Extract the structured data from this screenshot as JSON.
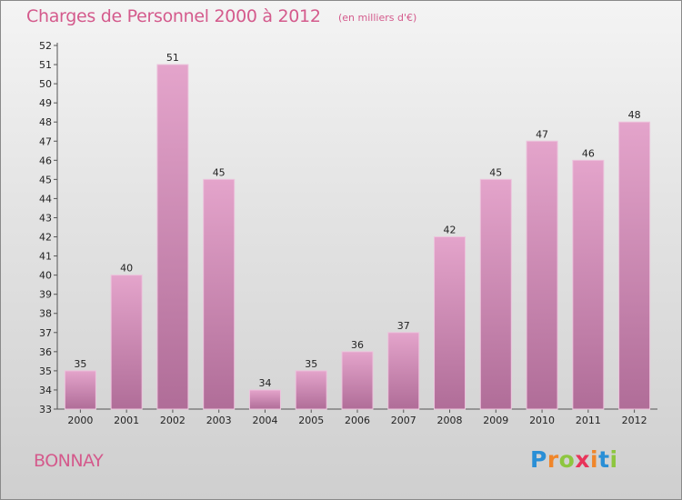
{
  "title": "Charges de Personnel 2000 à 2012",
  "unit_note": "(en milliers d'€)",
  "location": "BONNAY",
  "brand": {
    "letters": [
      {
        "char": "P",
        "color": "#2a8fd6"
      },
      {
        "char": "r",
        "color": "#f0862a"
      },
      {
        "char": "o",
        "color": "#8dc63f"
      },
      {
        "char": "x",
        "color": "#e8345a"
      },
      {
        "char": "i",
        "color": "#f0862a"
      },
      {
        "char": "t",
        "color": "#2a8fd6"
      },
      {
        "char": "i",
        "color": "#8dc63f"
      }
    ]
  },
  "colors": {
    "title": "#d45a8c",
    "bar_top": "#e4a4cb",
    "bar_bottom": "#b06d98"
  },
  "chart_data": {
    "type": "bar",
    "title": "Charges de Personnel 2000 à 2012",
    "subtitle": "(en milliers d'€)",
    "categories": [
      "2000",
      "2001",
      "2002",
      "2003",
      "2004",
      "2005",
      "2006",
      "2007",
      "2008",
      "2009",
      "2010",
      "2011",
      "2012"
    ],
    "values": [
      35,
      40,
      51,
      45,
      34,
      35,
      36,
      37,
      42,
      45,
      47,
      46,
      48
    ],
    "ylim": [
      33,
      52
    ],
    "yticks": [
      33,
      34,
      35,
      36,
      37,
      38,
      39,
      40,
      41,
      42,
      43,
      44,
      45,
      46,
      47,
      48,
      49,
      50,
      51,
      52
    ],
    "xlabel": "",
    "ylabel": "",
    "grid": false,
    "legend": "none"
  }
}
